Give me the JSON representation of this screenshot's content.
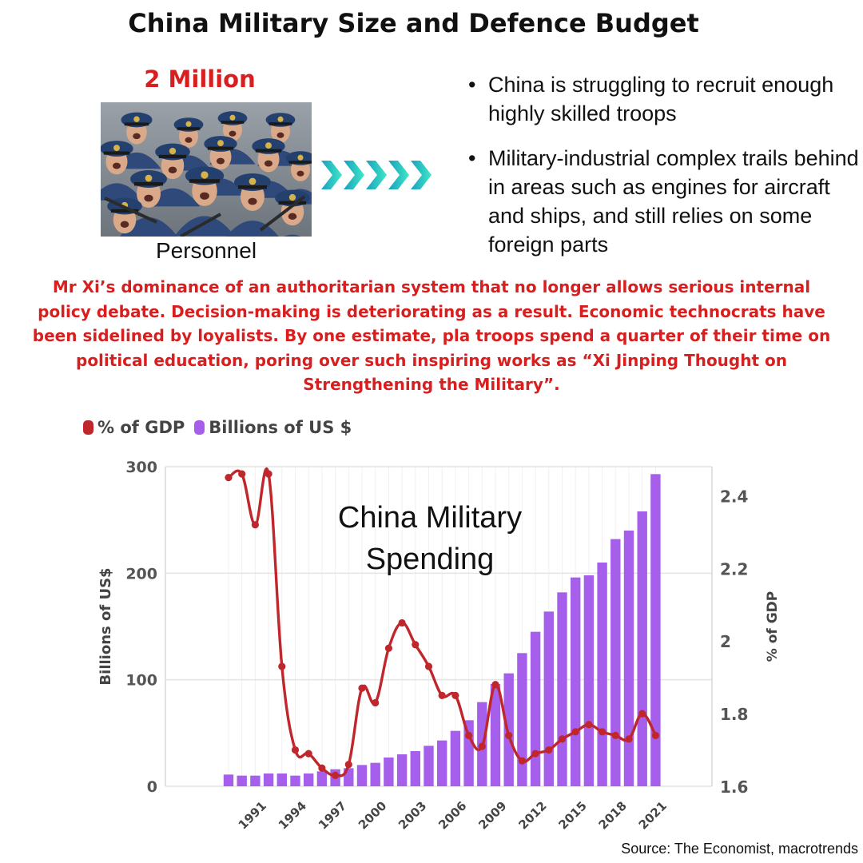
{
  "title": "China Military Size and Defence Budget",
  "personnel": {
    "stat": "2 Million",
    "caption": "Personnel"
  },
  "bullets": [
    "China is struggling to recruit enough highly skilled troops",
    "Military-industrial complex trails behind in areas such as engines for aircraft and ships, and still relies on some foreign parts"
  ],
  "quote": "Mr Xi’s dominance of an authoritarian system that no longer allows serious internal\npolicy debate. Decision-making is deteriorating as a result. Economic technocrats have\nbeen sidelined by loyalists. By one estimate, pla troops spend a quarter of their time on\npolitical education, poring over such inspiring works as “Xi Jinping Thought on\nStrengthening the Military”.",
  "source": "Source: The Economist, macrotrends",
  "chart_data": {
    "type": "bar+line",
    "title": "China Military\nSpending",
    "xlabel": "",
    "ylabel_left": "Billions of US$",
    "ylabel_right": "% of GDP",
    "ylim_left": [
      0,
      300
    ],
    "ylim_right": [
      1.6,
      2.48
    ],
    "left_ticks": [
      0,
      100,
      200,
      300
    ],
    "right_ticks": [
      1.6,
      1.8,
      2,
      2.2,
      2.4
    ],
    "x_tick_labels": [
      "1991",
      "1994",
      "1997",
      "2000",
      "2003",
      "2006",
      "2009",
      "2012",
      "2015",
      "2018",
      "2021"
    ],
    "years": [
      1989,
      1990,
      1991,
      1992,
      1993,
      1994,
      1995,
      1996,
      1997,
      1998,
      1999,
      2000,
      2001,
      2002,
      2003,
      2004,
      2005,
      2006,
      2007,
      2008,
      2009,
      2010,
      2011,
      2012,
      2013,
      2014,
      2015,
      2016,
      2017,
      2018,
      2019,
      2020,
      2021
    ],
    "grid": true,
    "legend_position": "top-left",
    "series": [
      {
        "name": "% of GDP",
        "type": "line",
        "axis": "right",
        "color": "#c0272d",
        "values": [
          2.45,
          2.46,
          2.32,
          2.46,
          1.93,
          1.7,
          1.69,
          1.65,
          1.63,
          1.66,
          1.87,
          1.83,
          1.98,
          2.05,
          1.99,
          1.93,
          1.85,
          1.85,
          1.74,
          1.71,
          1.88,
          1.74,
          1.67,
          1.69,
          1.7,
          1.73,
          1.75,
          1.77,
          1.75,
          1.74,
          1.73,
          1.8,
          1.74
        ]
      },
      {
        "name": "Billions of US $",
        "type": "bar",
        "axis": "left",
        "color": "#a55fea",
        "values": [
          11,
          10,
          10,
          12,
          12,
          10,
          12,
          14,
          16,
          17,
          20,
          22,
          27,
          30,
          33,
          38,
          43,
          52,
          62,
          79,
          96,
          106,
          125,
          145,
          164,
          182,
          196,
          198,
          210,
          232,
          240,
          258,
          293
        ]
      }
    ]
  }
}
